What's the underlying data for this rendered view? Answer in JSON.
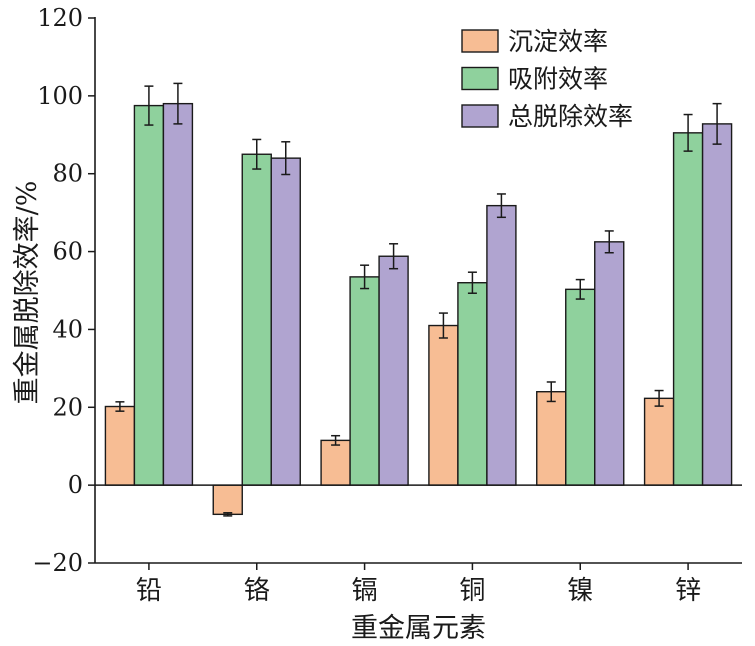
{
  "chart_data": {
    "type": "bar",
    "title": "",
    "xlabel": "重金属元素",
    "ylabel": "重金属脱除效率/%",
    "ylim": [
      -20,
      120
    ],
    "yticks": [
      -20,
      0,
      20,
      40,
      60,
      80,
      100,
      120
    ],
    "ytick_labels": [
      "−20",
      "0",
      "20",
      "40",
      "60",
      "80",
      "100",
      "120"
    ],
    "grid": false,
    "legend_position": "top-right",
    "categories": [
      "铅",
      "铬",
      "镉",
      "铜",
      "镍",
      "锌"
    ],
    "series": [
      {
        "name": "沉淀效率",
        "color": "#f7bd94",
        "values": [
          20.2,
          -7.5,
          11.5,
          41.0,
          24.0,
          22.3
        ],
        "errors": [
          1.2,
          0.4,
          1.2,
          3.2,
          2.5,
          2.0
        ]
      },
      {
        "name": "吸附效率",
        "color": "#8fd19d",
        "values": [
          97.5,
          85.0,
          53.5,
          52.0,
          50.3,
          90.5
        ],
        "errors": [
          5.0,
          3.8,
          3.0,
          2.7,
          2.5,
          4.7
        ]
      },
      {
        "name": "总脱除效率",
        "color": "#b0a4d0",
        "values": [
          98.0,
          84.0,
          58.8,
          71.8,
          62.5,
          92.8
        ],
        "errors": [
          5.2,
          4.2,
          3.2,
          3.0,
          2.8,
          5.2
        ]
      }
    ]
  }
}
